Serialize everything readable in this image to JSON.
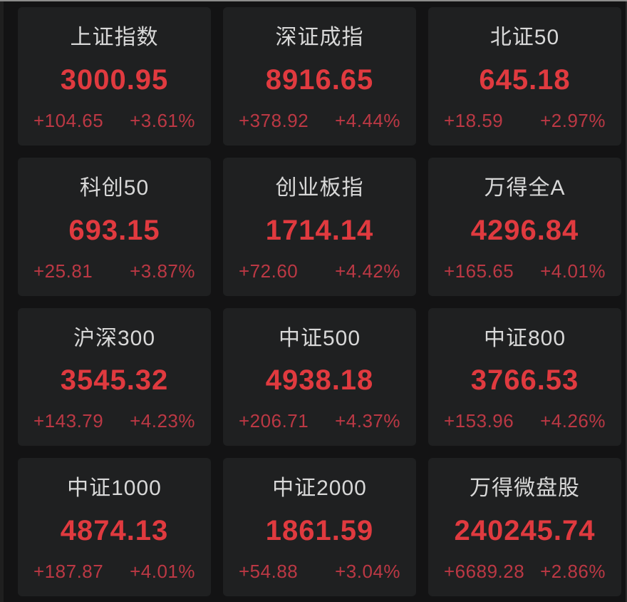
{
  "page": {
    "background_color": "#131314",
    "card_background_color": "#1f2021",
    "title_color": "#d8d8d8",
    "value_color": "#e03a3f",
    "change_color": "#bb3844"
  },
  "indices": [
    {
      "name": "上证指数",
      "value": "3000.95",
      "change": "+104.65",
      "change_pct": "+3.61%"
    },
    {
      "name": "深证成指",
      "value": "8916.65",
      "change": "+378.92",
      "change_pct": "+4.44%"
    },
    {
      "name": "北证50",
      "value": "645.18",
      "change": "+18.59",
      "change_pct": "+2.97%"
    },
    {
      "name": "科创50",
      "value": "693.15",
      "change": "+25.81",
      "change_pct": "+3.87%"
    },
    {
      "name": "创业板指",
      "value": "1714.14",
      "change": "+72.60",
      "change_pct": "+4.42%"
    },
    {
      "name": "万得全A",
      "value": "4296.84",
      "change": "+165.65",
      "change_pct": "+4.01%"
    },
    {
      "name": "沪深300",
      "value": "3545.32",
      "change": "+143.79",
      "change_pct": "+4.23%"
    },
    {
      "name": "中证500",
      "value": "4938.18",
      "change": "+206.71",
      "change_pct": "+4.37%"
    },
    {
      "name": "中证800",
      "value": "3766.53",
      "change": "+153.96",
      "change_pct": "+4.26%"
    },
    {
      "name": "中证1000",
      "value": "4874.13",
      "change": "+187.87",
      "change_pct": "+4.01%"
    },
    {
      "name": "中证2000",
      "value": "1861.59",
      "change": "+54.88",
      "change_pct": "+3.04%"
    },
    {
      "name": "万得微盘股",
      "value": "240245.74",
      "change": "+6689.28",
      "change_pct": "+2.86%"
    }
  ]
}
